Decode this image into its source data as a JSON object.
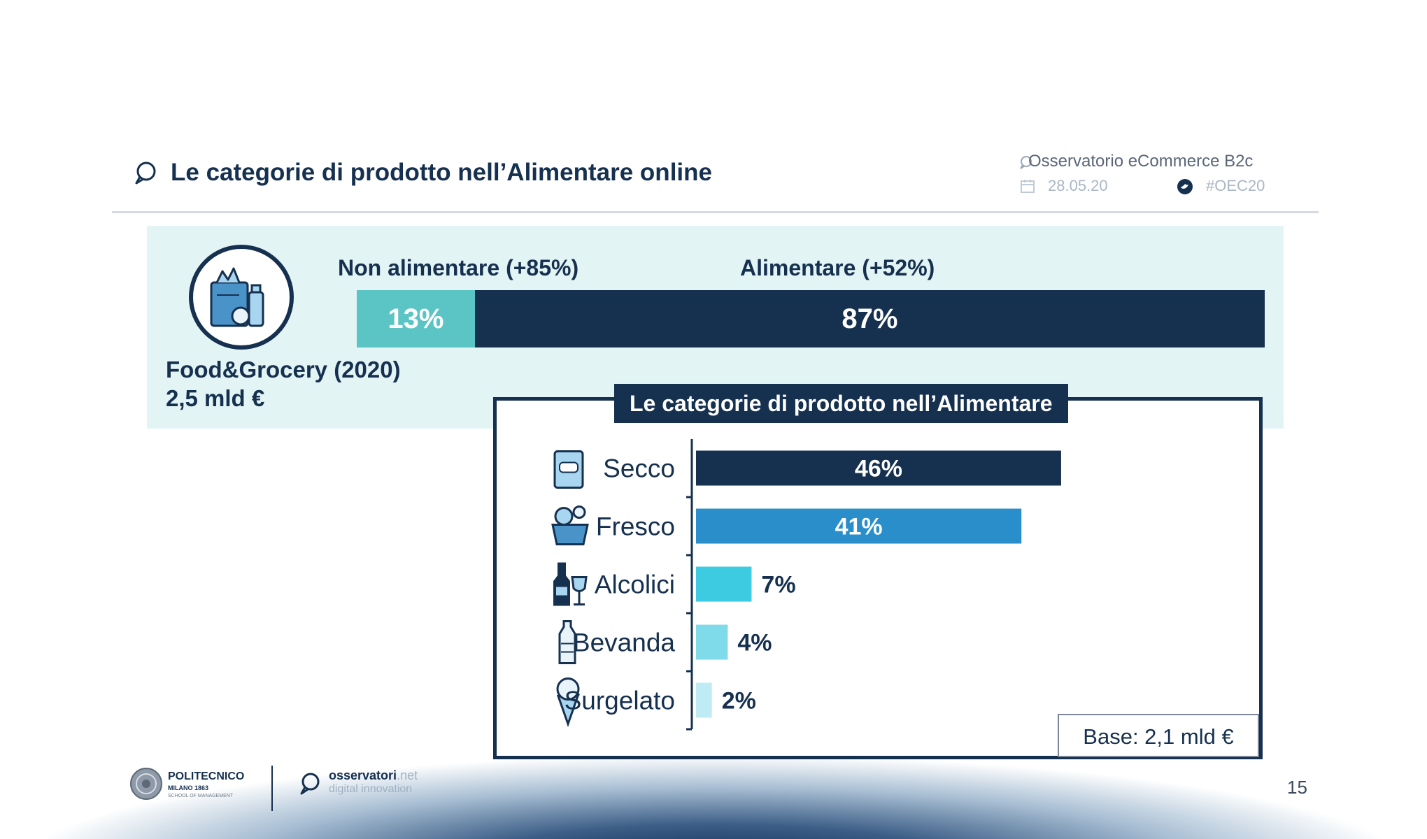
{
  "header": {
    "title": "Le categorie di prodotto nell’Alimentare online",
    "source": "Osservatorio eCommerce B2c",
    "date": "28.05.20",
    "hashtag": "#OEC20"
  },
  "summary": {
    "market_title": "Food&Grocery (2020)",
    "market_value": "2,5 mld €",
    "non_food_label": "Non alimentare (+85%)",
    "food_label": "Alimentare (+52%)",
    "split": [
      {
        "label": "13%",
        "value": 13,
        "color": "#5bc4c4"
      },
      {
        "label": "87%",
        "value": 87,
        "color": "#16304f"
      }
    ]
  },
  "panel": {
    "title": "Le categorie di prodotto nell’Alimentare",
    "base": "Base: 2,1 mld €"
  },
  "chart_data": {
    "type": "bar",
    "orientation": "horizontal",
    "title": "Le categorie di prodotto nell’Alimentare",
    "categories": [
      "Secco",
      "Fresco",
      "Alcolici",
      "Bevanda",
      "Surgelato"
    ],
    "values": [
      46,
      41,
      7,
      4,
      2
    ],
    "value_labels": [
      "46%",
      "41%",
      "7%",
      "4%",
      "2%"
    ],
    "colors": [
      "#16304f",
      "#2a8ecb",
      "#3ccbe0",
      "#7fdbea",
      "#bfecf4"
    ],
    "label_colors": [
      "#ffffff",
      "#ffffff",
      "#16304f",
      "#16304f",
      "#16304f"
    ],
    "icons": [
      "bag-icon",
      "basket-icon",
      "wine-icon",
      "water-bottle-icon",
      "ice-cream-icon"
    ],
    "xlim": [
      0,
      52
    ],
    "grid": false,
    "legend": "none"
  },
  "footer": {
    "university": "POLITECNICO",
    "university_sub": "MILANO 1863",
    "school": "SCHOOL OF MANAGEMENT",
    "brand": "osservatori",
    "brand_suffix": ".net",
    "brand_sub": "digital innovation",
    "page_number": "15"
  }
}
